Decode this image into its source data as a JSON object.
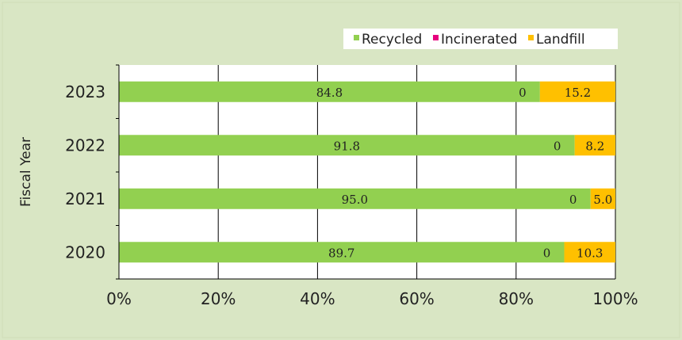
{
  "chart_data": {
    "type": "bar",
    "orientation": "horizontal",
    "stacked": true,
    "percent": true,
    "categories": [
      "2023",
      "2022",
      "2021",
      "2020"
    ],
    "series": [
      {
        "name": "Recycled",
        "color": "#92d050",
        "values": [
          84.8,
          91.8,
          95.0,
          89.7
        ],
        "labels": [
          "84.8",
          "91.8",
          "95.0",
          "89.7"
        ]
      },
      {
        "name": "Incinerated",
        "color": "#e6007e",
        "values": [
          0,
          0,
          0,
          0
        ],
        "labels": [
          "0",
          "0",
          "0",
          "0"
        ]
      },
      {
        "name": "Landfill",
        "color": "#ffc000",
        "values": [
          15.2,
          8.2,
          5.0,
          10.3
        ],
        "labels": [
          "15.2",
          "8.2",
          "5.0",
          "10.3"
        ]
      }
    ],
    "ylabel": "Fiscal Year",
    "xlim": [
      0,
      100
    ],
    "x_ticks": [
      "0%",
      "20%",
      "40%",
      "60%",
      "80%",
      "100%"
    ],
    "grid": "vertical",
    "legend_position": "top-right"
  }
}
